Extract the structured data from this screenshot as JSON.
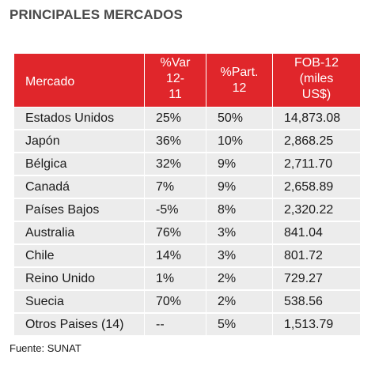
{
  "title": "PRINCIPALES MERCADOS",
  "header_color": "#e0262b",
  "row_color": "#ececec",
  "table": {
    "headers": {
      "mercado": "Mercado",
      "var_line1": "%Var",
      "var_line2": "12-",
      "var_line3": "11",
      "part_line1": "%Part.",
      "part_line2": "12",
      "fob_line1": "FOB-12",
      "fob_line2": "(miles",
      "fob_line3": "US$)"
    },
    "rows": [
      {
        "mercado": "Estados Unidos",
        "var": "25%",
        "part": "50%",
        "fob": "14,873.08"
      },
      {
        "mercado": "Japón",
        "var": "36%",
        "part": "10%",
        "fob": "2,868.25"
      },
      {
        "mercado": "Bélgica",
        "var": "32%",
        "part": "9%",
        "fob": "2,711.70"
      },
      {
        "mercado": "Canadá",
        "var": "7%",
        "part": "9%",
        "fob": "2,658.89"
      },
      {
        "mercado": "Países Bajos",
        "var": "-5%",
        "part": "8%",
        "fob": "2,320.22"
      },
      {
        "mercado": "Australia",
        "var": "76%",
        "part": "3%",
        "fob": "841.04"
      },
      {
        "mercado": "Chile",
        "var": "14%",
        "part": "3%",
        "fob": "801.72"
      },
      {
        "mercado": "Reino Unido",
        "var": "1%",
        "part": "2%",
        "fob": "729.27"
      },
      {
        "mercado": "Suecia",
        "var": "70%",
        "part": "2%",
        "fob": "538.56"
      },
      {
        "mercado": "Otros Paises (14)",
        "var": "--",
        "part": "5%",
        "fob": "1,513.79"
      }
    ]
  },
  "source": "Fuente: SUNAT"
}
